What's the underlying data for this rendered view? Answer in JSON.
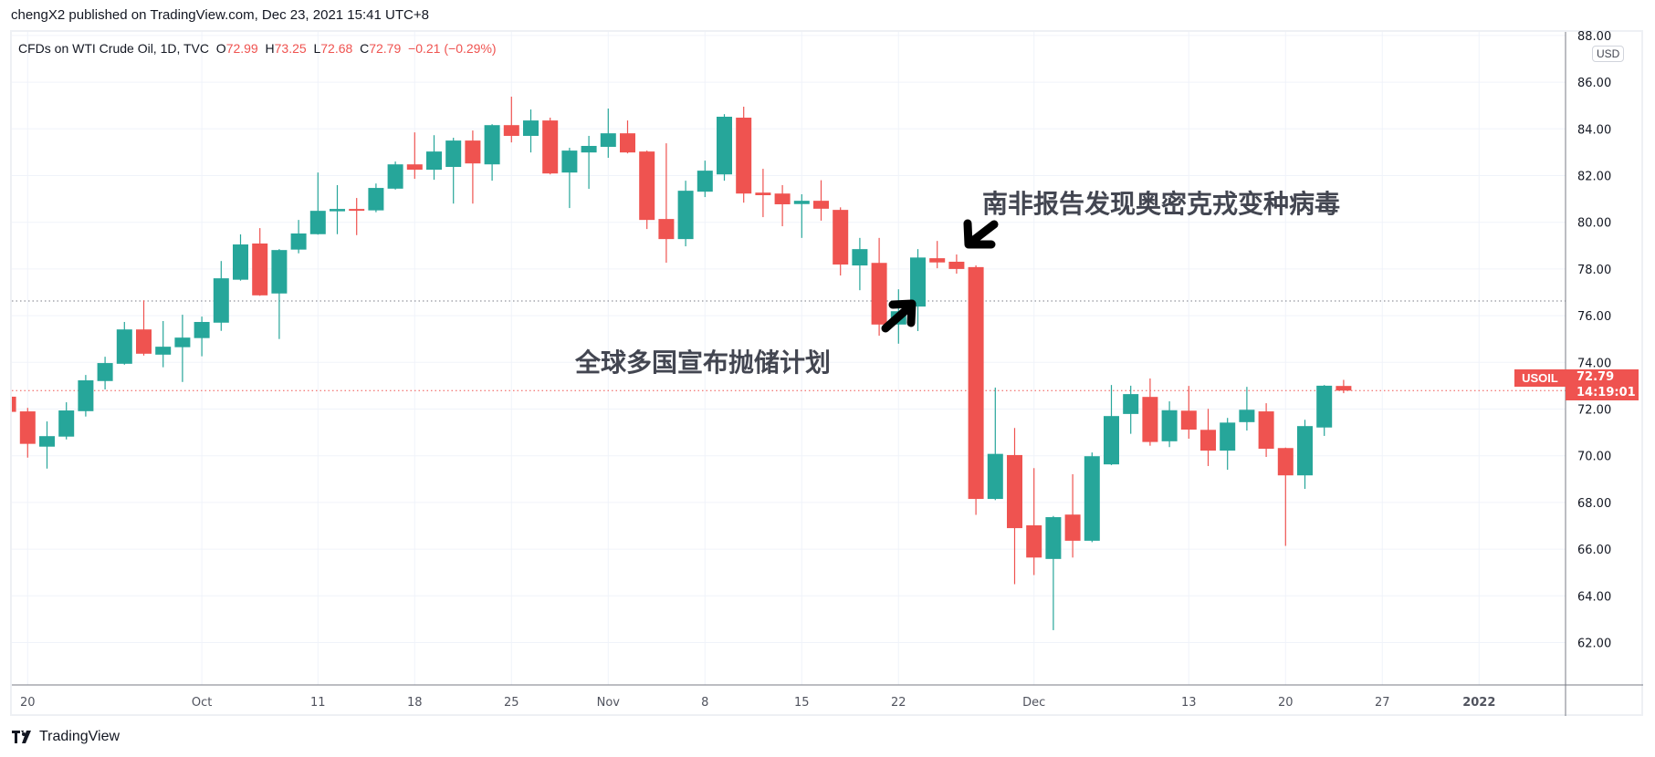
{
  "header": {
    "published": "chengX2 published on TradingView.com, Dec 23, 2021 15:41 UTC+8"
  },
  "legend": {
    "symbol": "CFDs on WTI Crude Oil, 1D, TVC",
    "o_label": "O",
    "o": "72.99",
    "h_label": "H",
    "h": "73.25",
    "l_label": "L",
    "l": "72.68",
    "c_label": "C",
    "c": "72.79",
    "change": "−0.21 (−0.29%)"
  },
  "price_axis": {
    "currency": "USD",
    "ticks": [
      "62.00",
      "64.00",
      "66.00",
      "68.00",
      "70.00",
      "72.00",
      "74.00",
      "76.00",
      "78.00",
      "80.00",
      "82.00",
      "84.00",
      "86.00",
      "88.00"
    ]
  },
  "last_price": {
    "symbol": "USOIL",
    "price": "72.79",
    "countdown": "14:19:01"
  },
  "annotations": {
    "omicron": "南非报告发现奥密克戎变种病毒",
    "reserves": "全球多国宣布抛储计划"
  },
  "footer": {
    "brand": "TradingView"
  },
  "colors": {
    "up": "#26a69a",
    "down": "#ef5350",
    "grid": "#f0f3fa",
    "text": "#131722"
  },
  "chart_data": {
    "type": "candlestick",
    "title": "CFDs on WTI Crude Oil, 1D, TVC",
    "ylim": [
      60.6,
      88.4
    ],
    "grid": true,
    "reference_lines": [
      {
        "value": 76.63,
        "color": "#787b86",
        "style": "dotted"
      },
      {
        "value": 72.79,
        "color": "#ef5350",
        "style": "dotted"
      }
    ],
    "x_ticks": [
      {
        "label": "20",
        "date": "2021-09-20"
      },
      {
        "label": "Oct",
        "date": "2021-10-01"
      },
      {
        "label": "11",
        "date": "2021-10-11"
      },
      {
        "label": "18",
        "date": "2021-10-18"
      },
      {
        "label": "25",
        "date": "2021-10-25"
      },
      {
        "label": "Nov",
        "date": "2021-11-01"
      },
      {
        "label": "8",
        "date": "2021-11-08"
      },
      {
        "label": "15",
        "date": "2021-11-15"
      },
      {
        "label": "22",
        "date": "2021-11-22"
      },
      {
        "label": "Dec",
        "date": "2021-12-01"
      },
      {
        "label": "13",
        "date": "2021-12-13"
      },
      {
        "label": "20",
        "date": "2021-12-20"
      },
      {
        "label": "27",
        "date": "2021-12-27"
      },
      {
        "label": "2022",
        "date": "2022-01-03"
      }
    ],
    "columns": [
      "date",
      "open",
      "high",
      "low",
      "close"
    ],
    "candles": [
      [
        "2021-09-17",
        72.53,
        72.7,
        71.6,
        71.88
      ],
      [
        "2021-09-20",
        71.9,
        72.05,
        69.92,
        70.51
      ],
      [
        "2021-09-21",
        70.39,
        71.47,
        69.45,
        70.84
      ],
      [
        "2021-09-22",
        70.82,
        72.29,
        70.7,
        71.94
      ],
      [
        "2021-09-23",
        71.91,
        73.46,
        71.68,
        73.23
      ],
      [
        "2021-09-24",
        73.2,
        74.24,
        72.84,
        73.97
      ],
      [
        "2021-09-27",
        73.94,
        75.73,
        73.9,
        75.41
      ],
      [
        "2021-09-28",
        75.41,
        76.66,
        74.29,
        74.37
      ],
      [
        "2021-09-29",
        74.33,
        75.77,
        73.79,
        74.67
      ],
      [
        "2021-09-30",
        74.65,
        76.04,
        73.16,
        75.06
      ],
      [
        "2021-10-01",
        75.04,
        75.96,
        74.26,
        75.73
      ],
      [
        "2021-10-04",
        75.7,
        78.34,
        75.35,
        77.6
      ],
      [
        "2021-10-05",
        77.54,
        79.48,
        77.5,
        79.05
      ],
      [
        "2021-10-06",
        79.09,
        79.75,
        76.85,
        76.87
      ],
      [
        "2021-10-07",
        76.95,
        78.85,
        75.0,
        78.81
      ],
      [
        "2021-10-08",
        78.83,
        80.1,
        78.67,
        79.52
      ],
      [
        "2021-10-11",
        79.49,
        82.13,
        79.47,
        80.49
      ],
      [
        "2021-10-12",
        80.47,
        81.59,
        79.49,
        80.57
      ],
      [
        "2021-10-13",
        80.57,
        81.04,
        79.45,
        80.51
      ],
      [
        "2021-10-14",
        80.51,
        81.66,
        80.43,
        81.47
      ],
      [
        "2021-10-15",
        81.44,
        82.6,
        81.4,
        82.48
      ],
      [
        "2021-10-18",
        82.48,
        83.85,
        81.86,
        82.25
      ],
      [
        "2021-10-19",
        82.25,
        83.73,
        81.82,
        83.03
      ],
      [
        "2021-10-20",
        82.37,
        83.62,
        80.8,
        83.5
      ],
      [
        "2021-10-21",
        83.5,
        83.93,
        80.8,
        82.52
      ],
      [
        "2021-10-22",
        82.48,
        84.2,
        81.78,
        84.16
      ],
      [
        "2021-10-25",
        84.16,
        85.38,
        83.42,
        83.7
      ],
      [
        "2021-10-26",
        83.7,
        84.83,
        82.99,
        84.36
      ],
      [
        "2021-10-27",
        84.36,
        84.48,
        82.05,
        82.09
      ],
      [
        "2021-10-28",
        82.13,
        83.19,
        80.61,
        83.07
      ],
      [
        "2021-10-29",
        82.99,
        83.7,
        81.43,
        83.27
      ],
      [
        "2021-11-01",
        83.23,
        84.87,
        82.76,
        83.81
      ],
      [
        "2021-11-02",
        83.81,
        84.36,
        82.95,
        82.99
      ],
      [
        "2021-11-03",
        83.03,
        83.07,
        79.71,
        80.1
      ],
      [
        "2021-11-04",
        80.14,
        83.38,
        78.27,
        79.28
      ],
      [
        "2021-11-05",
        79.28,
        81.78,
        78.97,
        81.35
      ],
      [
        "2021-11-08",
        81.31,
        82.64,
        81.08,
        82.21
      ],
      [
        "2021-11-09",
        82.05,
        84.63,
        81.78,
        84.52
      ],
      [
        "2021-11-10",
        84.48,
        84.95,
        80.84,
        81.23
      ],
      [
        "2021-11-11",
        81.27,
        82.29,
        80.22,
        81.16
      ],
      [
        "2021-11-12",
        81.23,
        81.59,
        79.83,
        80.77
      ],
      [
        "2021-11-15",
        80.78,
        81.2,
        79.33,
        80.92
      ],
      [
        "2021-11-16",
        80.92,
        81.8,
        80.07,
        80.58
      ],
      [
        "2021-11-17",
        80.53,
        80.64,
        77.72,
        78.19
      ],
      [
        "2021-11-18",
        78.15,
        79.33,
        77.09,
        78.85
      ],
      [
        "2021-11-19",
        78.26,
        79.33,
        75.14,
        75.62
      ],
      [
        "2021-11-22",
        75.62,
        77.13,
        74.8,
        76.19
      ],
      [
        "2021-11-23",
        76.39,
        78.85,
        75.34,
        78.49
      ],
      [
        "2021-11-24",
        78.46,
        79.2,
        78.03,
        78.28
      ],
      [
        "2021-11-25",
        78.31,
        78.62,
        77.8,
        78.0
      ],
      [
        "2021-11-26",
        78.08,
        78.15,
        67.47,
        68.15
      ],
      [
        "2021-11-29",
        68.15,
        72.92,
        68.1,
        70.08
      ],
      [
        "2021-11-30",
        70.03,
        71.19,
        64.5,
        66.9
      ],
      [
        "2021-12-01",
        67.02,
        69.47,
        64.89,
        65.64
      ],
      [
        "2021-12-02",
        65.58,
        67.42,
        62.53,
        67.37
      ],
      [
        "2021-12-03",
        67.48,
        69.21,
        65.64,
        66.36
      ],
      [
        "2021-12-06",
        66.36,
        70.14,
        66.3,
        69.98
      ],
      [
        "2021-12-07",
        69.63,
        73.03,
        69.6,
        71.7
      ],
      [
        "2021-12-08",
        71.79,
        73.0,
        70.94,
        72.64
      ],
      [
        "2021-12-09",
        72.52,
        73.31,
        70.43,
        70.59
      ],
      [
        "2021-12-10",
        70.62,
        72.33,
        70.37,
        71.95
      ],
      [
        "2021-12-13",
        71.93,
        72.99,
        70.73,
        71.12
      ],
      [
        "2021-12-14",
        71.11,
        72.01,
        69.56,
        70.22
      ],
      [
        "2021-12-15",
        70.22,
        71.62,
        69.4,
        71.42
      ],
      [
        "2021-12-16",
        71.44,
        72.95,
        71.08,
        71.97
      ],
      [
        "2021-12-17",
        71.9,
        72.25,
        69.95,
        70.3
      ],
      [
        "2021-12-20",
        70.33,
        70.35,
        66.14,
        69.16
      ],
      [
        "2021-12-21",
        69.16,
        71.54,
        68.58,
        71.27
      ],
      [
        "2021-12-22",
        71.21,
        73.03,
        70.85,
        73.0
      ],
      [
        "2021-12-23",
        72.99,
        73.25,
        72.68,
        72.79
      ]
    ]
  }
}
